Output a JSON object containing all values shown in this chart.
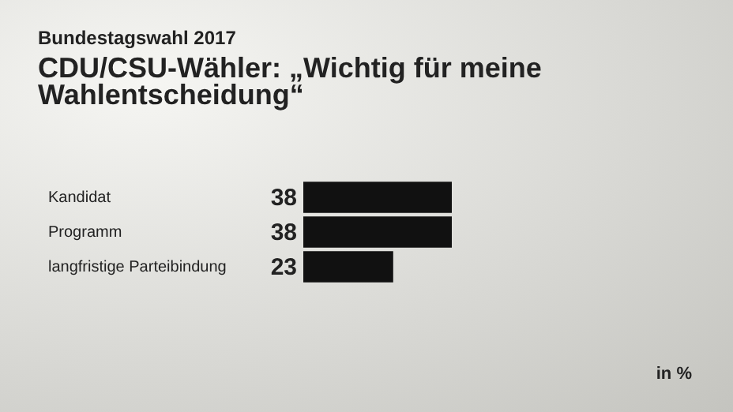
{
  "chart_data": {
    "type": "bar",
    "orientation": "horizontal",
    "subtitle": "Bundestagswahl 2017",
    "title": "CDU/CSU-Wähler: „Wichtig für meine Wahlentscheidung“",
    "categories": [
      "Kandidat",
      "Programm",
      "langfristige Parteibindung"
    ],
    "values": [
      38,
      38,
      23
    ],
    "color": "#111111",
    "data_labels": true,
    "annotations": [
      "in %"
    ]
  }
}
